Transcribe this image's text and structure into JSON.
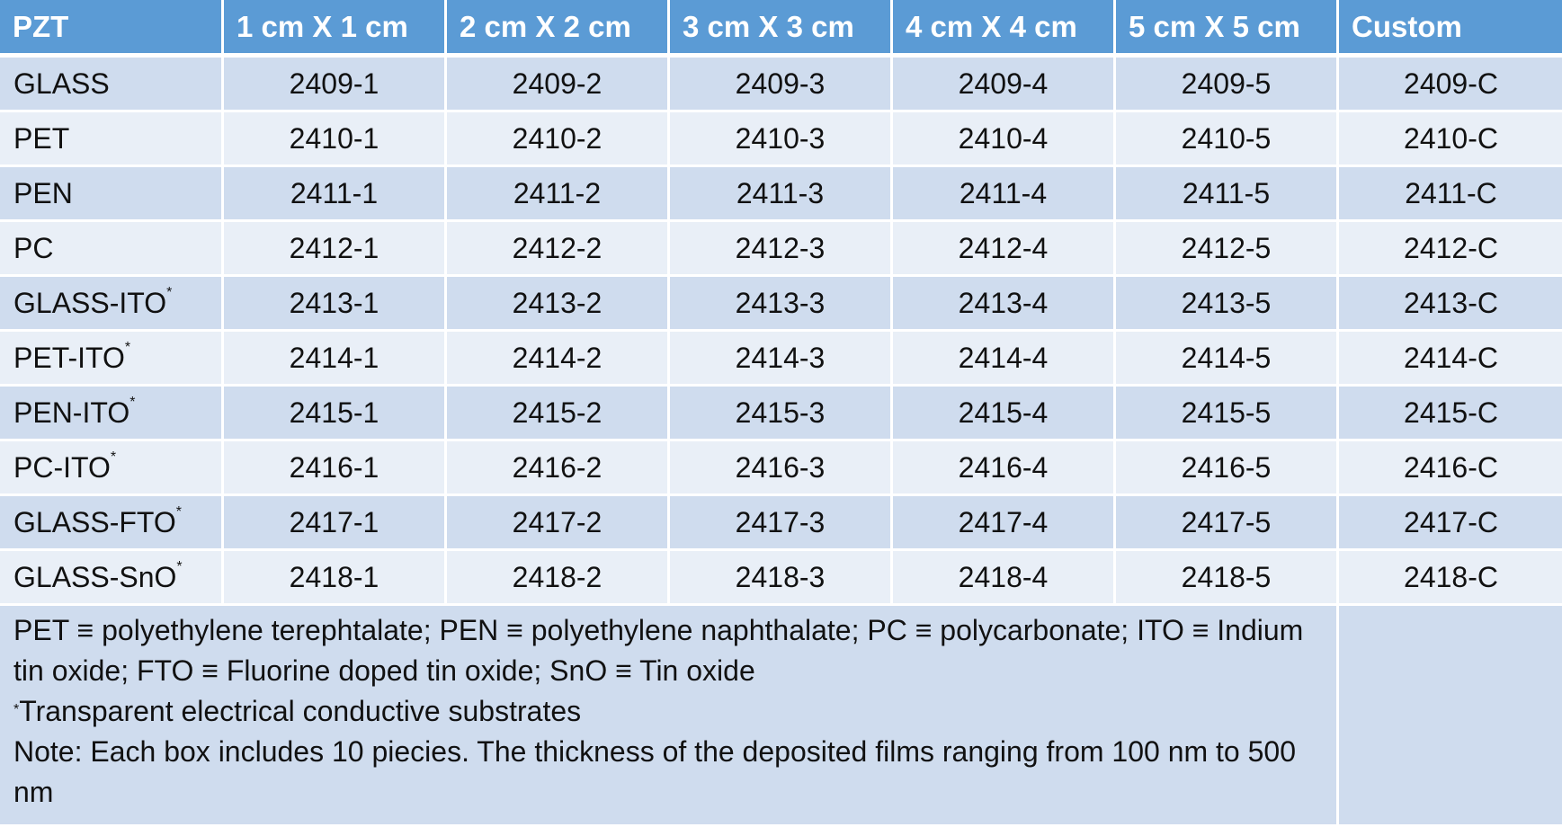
{
  "table": {
    "headers": [
      "PZT",
      "1 cm X 1 cm",
      "2 cm X 2 cm",
      "3 cm X 3 cm",
      "4 cm X 4 cm",
      "5 cm X 5 cm",
      "Custom"
    ],
    "rows": [
      {
        "label": "GLASS",
        "sup": "",
        "cells": [
          "2409-1",
          "2409-2",
          "2409-3",
          "2409-4",
          "2409-5",
          "2409-C"
        ]
      },
      {
        "label": "PET",
        "sup": "",
        "cells": [
          "2410-1",
          "2410-2",
          "2410-3",
          "2410-4",
          "2410-5",
          "2410-C"
        ]
      },
      {
        "label": "PEN",
        "sup": "",
        "cells": [
          "2411-1",
          "2411-2",
          "2411-3",
          "2411-4",
          "2411-5",
          "2411-C"
        ]
      },
      {
        "label": "PC",
        "sup": "",
        "cells": [
          "2412-1",
          "2412-2",
          "2412-3",
          "2412-4",
          "2412-5",
          "2412-C"
        ]
      },
      {
        "label": "GLASS-ITO",
        "sup": "*",
        "cells": [
          "2413-1",
          "2413-2",
          "2413-3",
          "2413-4",
          "2413-5",
          "2413-C"
        ]
      },
      {
        "label": "PET-ITO",
        "sup": "*",
        "cells": [
          "2414-1",
          "2414-2",
          "2414-3",
          "2414-4",
          "2414-5",
          "2414-C"
        ]
      },
      {
        "label": "PEN-ITO",
        "sup": "*",
        "cells": [
          "2415-1",
          "2415-2",
          "2415-3",
          "2415-4",
          "2415-5",
          "2415-C"
        ]
      },
      {
        "label": "PC-ITO",
        "sup": "*",
        "cells": [
          "2416-1",
          "2416-2",
          "2416-3",
          "2416-4",
          "2416-5",
          "2416-C"
        ]
      },
      {
        "label": "GLASS-FTO",
        "sup": "*",
        "cells": [
          "2417-1",
          "2417-2",
          "2417-3",
          "2417-4",
          "2417-5",
          "2417-C"
        ]
      },
      {
        "label": "GLASS-SnO",
        "sup": "*",
        "cells": [
          "2418-1",
          "2418-2",
          "2418-3",
          "2418-4",
          "2418-5",
          "2418-C"
        ]
      }
    ],
    "notes": {
      "abbreviations": "PET ≡ polyethylene terephtalate; PEN ≡ polyethylene naphthalate; PC ≡ polycarbonate; ITO ≡ Indium tin oxide; FTO ≡ Fluorine doped tin oxide; SnO ≡ Tin oxide",
      "footnote_mark": "*",
      "footnote": "Transparent electrical conductive substrates",
      "note": "Note: Each box includes 10 piecies. The thickness of the deposited films ranging from 100 nm to 500 nm"
    }
  },
  "colors": {
    "header_bg": "#5b9bd5",
    "row_dark": "#cfdcee",
    "row_light": "#e9eff7"
  }
}
